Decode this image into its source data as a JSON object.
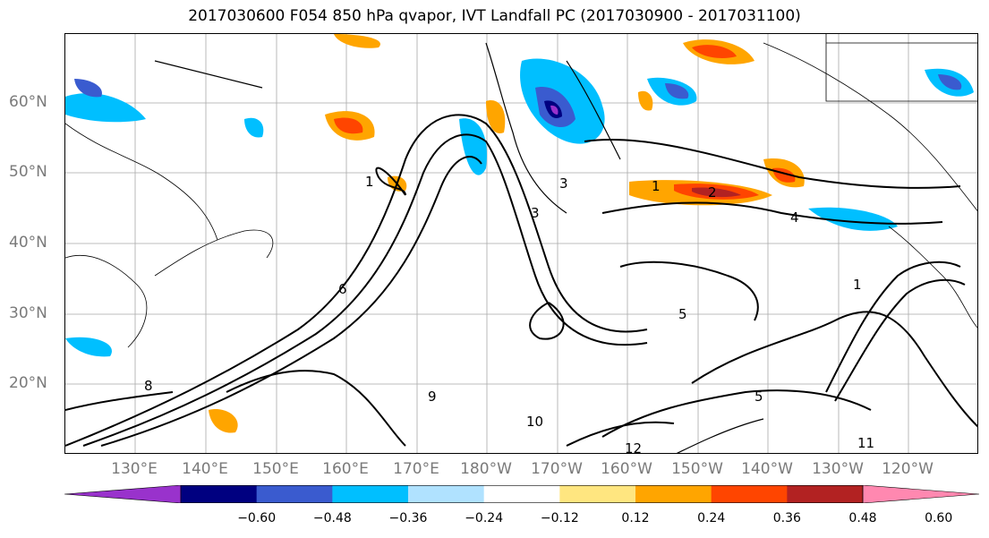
{
  "title": "2017030600 F054 850 hPa qvapor, IVT Landfall PC (2017030900 - 2017031100)",
  "lat_labels": [
    "60°N",
    "50°N",
    "40°N",
    "30°N",
    "20°N"
  ],
  "lon_labels": [
    "130°E",
    "140°E",
    "150°E",
    "160°E",
    "170°E",
    "180°W",
    "170°W",
    "160°W",
    "150°W",
    "140°W",
    "130°W",
    "120°W"
  ],
  "contour_labels": [
    "1",
    "1",
    "2",
    "3",
    "3",
    "4",
    "5",
    "6",
    "8",
    "9",
    "10",
    "11",
    "12",
    "5",
    "1"
  ],
  "colorbar": {
    "colors": [
      "#9932cc",
      "#000080",
      "#3a5bcf",
      "#00bfff",
      "#b0e2ff",
      "#ffffff",
      "#ffe680",
      "#ffa500",
      "#ff4500",
      "#b22222",
      "#ff88b0"
    ],
    "tick_labels": [
      "−0.60",
      "−0.48",
      "−0.36",
      "−0.24",
      "−0.12",
      "0.12",
      "0.24",
      "0.36",
      "0.48",
      "0.60"
    ]
  },
  "colors": {
    "grid": "#a9a9a9",
    "contour": "#000000",
    "axis_label": "#7a7a7a"
  }
}
